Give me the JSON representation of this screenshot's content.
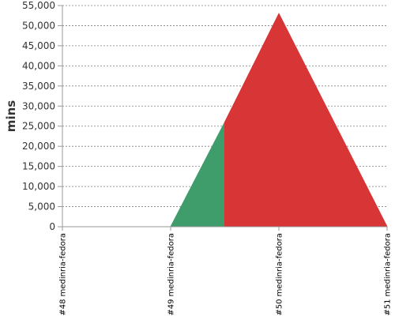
{
  "chart_data": {
    "type": "area",
    "title": "",
    "xlabel": "",
    "ylabel": "mins",
    "ylim": [
      0,
      55000
    ],
    "yticks": [
      0,
      5000,
      10000,
      15000,
      20000,
      25000,
      30000,
      35000,
      40000,
      45000,
      50000,
      55000
    ],
    "yticks_labels": [
      "0",
      "5,000",
      "10,000",
      "15,000",
      "20,000",
      "25,000",
      "30,000",
      "35,000",
      "40,000",
      "45,000",
      "50,000",
      "55,000"
    ],
    "grid": true,
    "categories": [
      "#48 medinria-fedora",
      "#49 medinria-fedora",
      "#50 medinria-fedora",
      "#51 medinria-fedora"
    ],
    "series": [
      {
        "color": "#3f9c6b",
        "x": [
          0,
          1,
          1.5
        ],
        "values": [
          0,
          0,
          26000
        ]
      },
      {
        "color": "#d73536",
        "x": [
          1.5,
          2,
          3
        ],
        "values": [
          26000,
          53000,
          0
        ]
      }
    ]
  }
}
